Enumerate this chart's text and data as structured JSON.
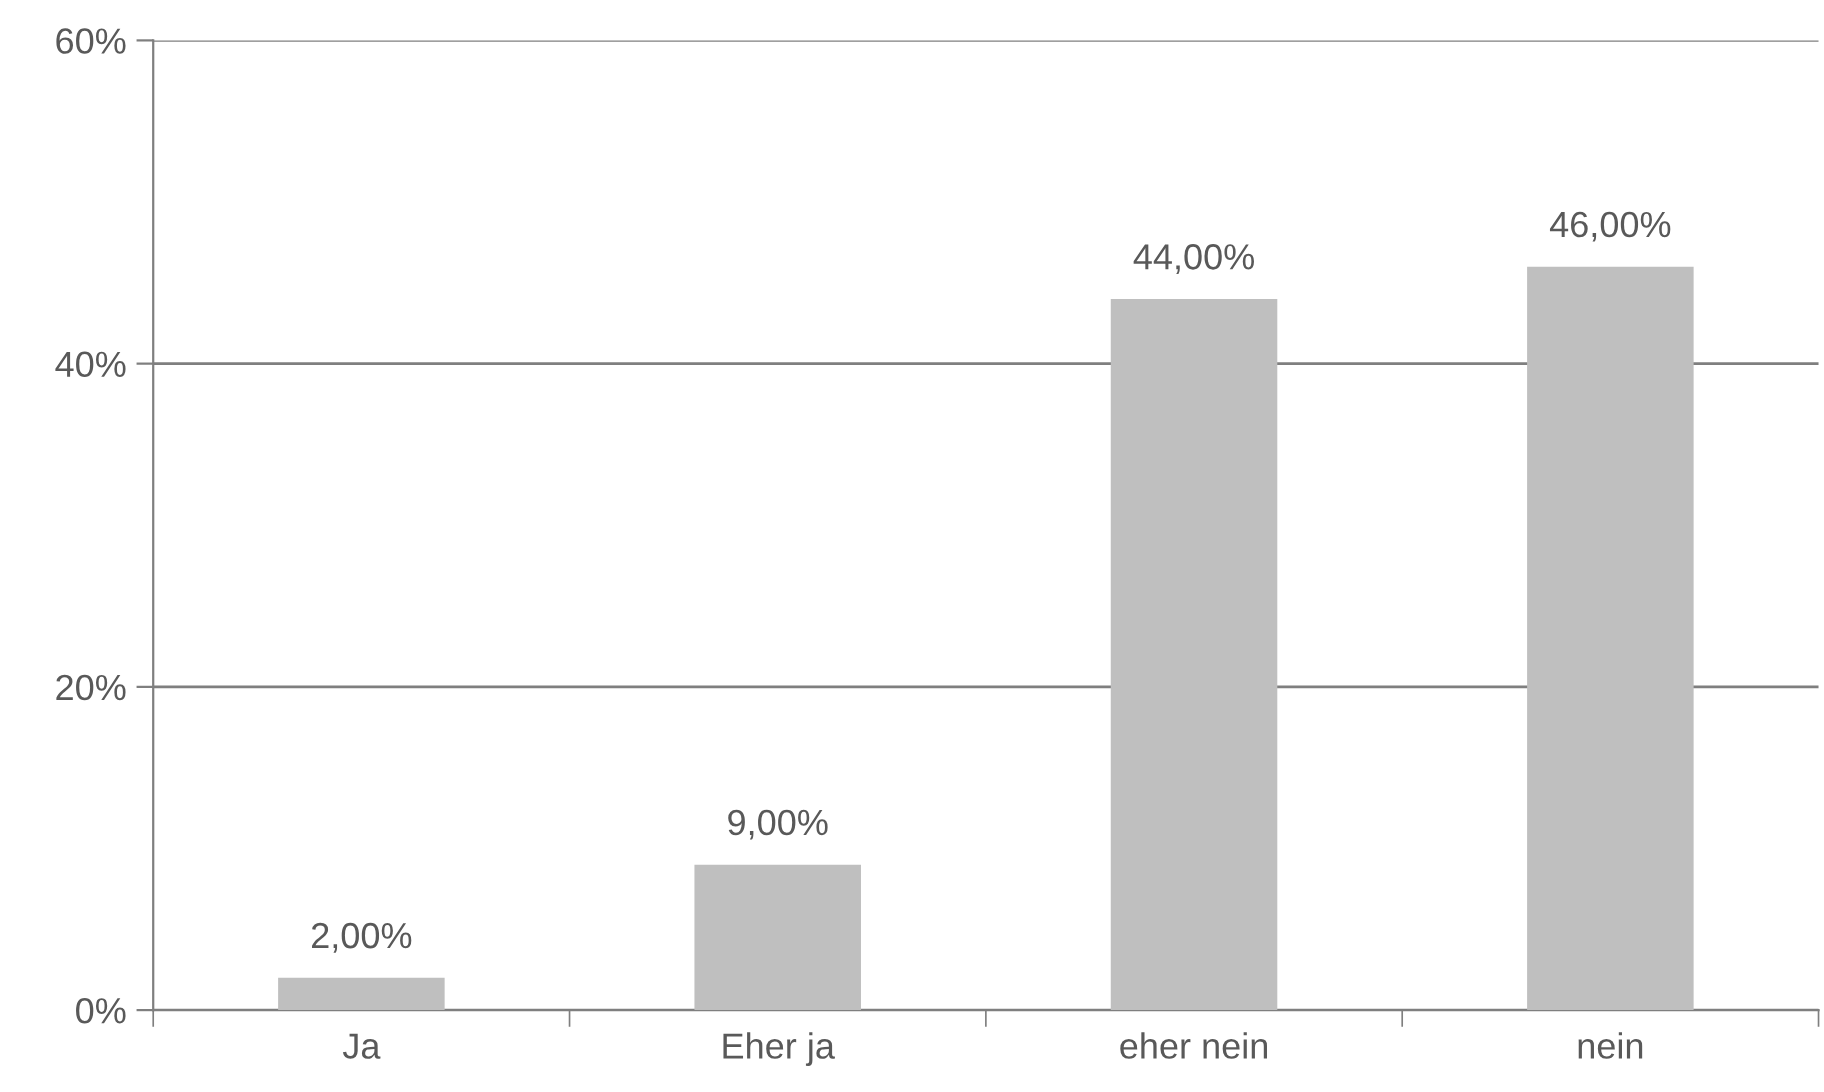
{
  "chart_data": {
    "type": "bar",
    "categories": [
      "Ja",
      "Eher ja",
      "eher nein",
      "nein"
    ],
    "values": [
      2,
      9,
      44,
      46
    ],
    "value_labels": [
      "2,00%",
      "9,00%",
      "44,00%",
      "46,00%"
    ],
    "color": "#bfbfbf",
    "ylim": [
      0,
      60
    ],
    "yticks": [
      {
        "value": 0,
        "label": "0%"
      },
      {
        "value": 20,
        "label": "20%"
      },
      {
        "value": 40,
        "label": "40%"
      },
      {
        "value": 60,
        "label": "60%"
      }
    ],
    "grid": "y",
    "legend": false
  }
}
